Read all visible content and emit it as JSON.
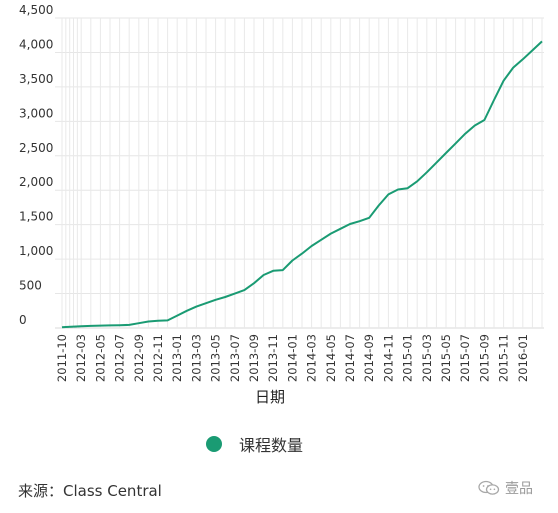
{
  "chart_data": {
    "type": "line",
    "xlabel": "日期",
    "ylabel": "",
    "ylim": [
      0,
      4500
    ],
    "yticks": [
      0,
      500,
      1000,
      1500,
      2000,
      2500,
      3000,
      3500,
      4000,
      4500
    ],
    "ytick_labels": [
      "0",
      "500",
      "1,000",
      "1,500",
      "2,000",
      "2,500",
      "3,000",
      "3,500",
      "4,000",
      "4,500"
    ],
    "xtick_labels": [
      "2011-10",
      "2012-03",
      "2012-05",
      "2012-07",
      "2012-09",
      "2012-11",
      "2013-01",
      "2013-03",
      "2013-05",
      "2013-07",
      "2013-09",
      "2013-11",
      "2014-01",
      "2014-03",
      "2014-05",
      "2014-07",
      "2014-09",
      "2014-11",
      "2015-01",
      "2015-03",
      "2015-05",
      "2015-07",
      "2015-09",
      "2015-11",
      "2016-01"
    ],
    "grid": true,
    "legend_position": "bottom",
    "series": [
      {
        "name": "课程数量",
        "color": "#1a9b73",
        "x": [
          "2011-10",
          "2011-11",
          "2012-03",
          "2012-04",
          "2012-05",
          "2012-06",
          "2012-07",
          "2012-08",
          "2012-09",
          "2012-10",
          "2012-11",
          "2012-12",
          "2013-01",
          "2013-02",
          "2013-03",
          "2013-04",
          "2013-05",
          "2013-06",
          "2013-07",
          "2013-08",
          "2013-09",
          "2013-10",
          "2013-11",
          "2013-12",
          "2014-01",
          "2014-02",
          "2014-03",
          "2014-04",
          "2014-05",
          "2014-06",
          "2014-07",
          "2014-08",
          "2014-09",
          "2014-10",
          "2014-11",
          "2014-12",
          "2015-01",
          "2015-02",
          "2015-03",
          "2015-04",
          "2015-05",
          "2015-06",
          "2015-07",
          "2015-08",
          "2015-09",
          "2015-10",
          "2015-11",
          "2015-12",
          "2016-01",
          "2016-02",
          "2016-03"
        ],
        "values": [
          10,
          15,
          25,
          30,
          35,
          38,
          40,
          45,
          70,
          95,
          105,
          110,
          180,
          250,
          310,
          360,
          410,
          450,
          500,
          550,
          650,
          770,
          830,
          840,
          980,
          1080,
          1190,
          1280,
          1370,
          1440,
          1510,
          1550,
          1600,
          1780,
          1940,
          2010,
          2030,
          2130,
          2260,
          2400,
          2540,
          2680,
          2820,
          2940,
          3020,
          3310,
          3590,
          3780,
          3900,
          4030,
          4160
        ]
      }
    ]
  },
  "legend": {
    "label": "课程数量",
    "color": "#1a9b73"
  },
  "source": "来源：Class Central",
  "watermark": {
    "text": "壹品",
    "icon": "wechat-icon"
  }
}
